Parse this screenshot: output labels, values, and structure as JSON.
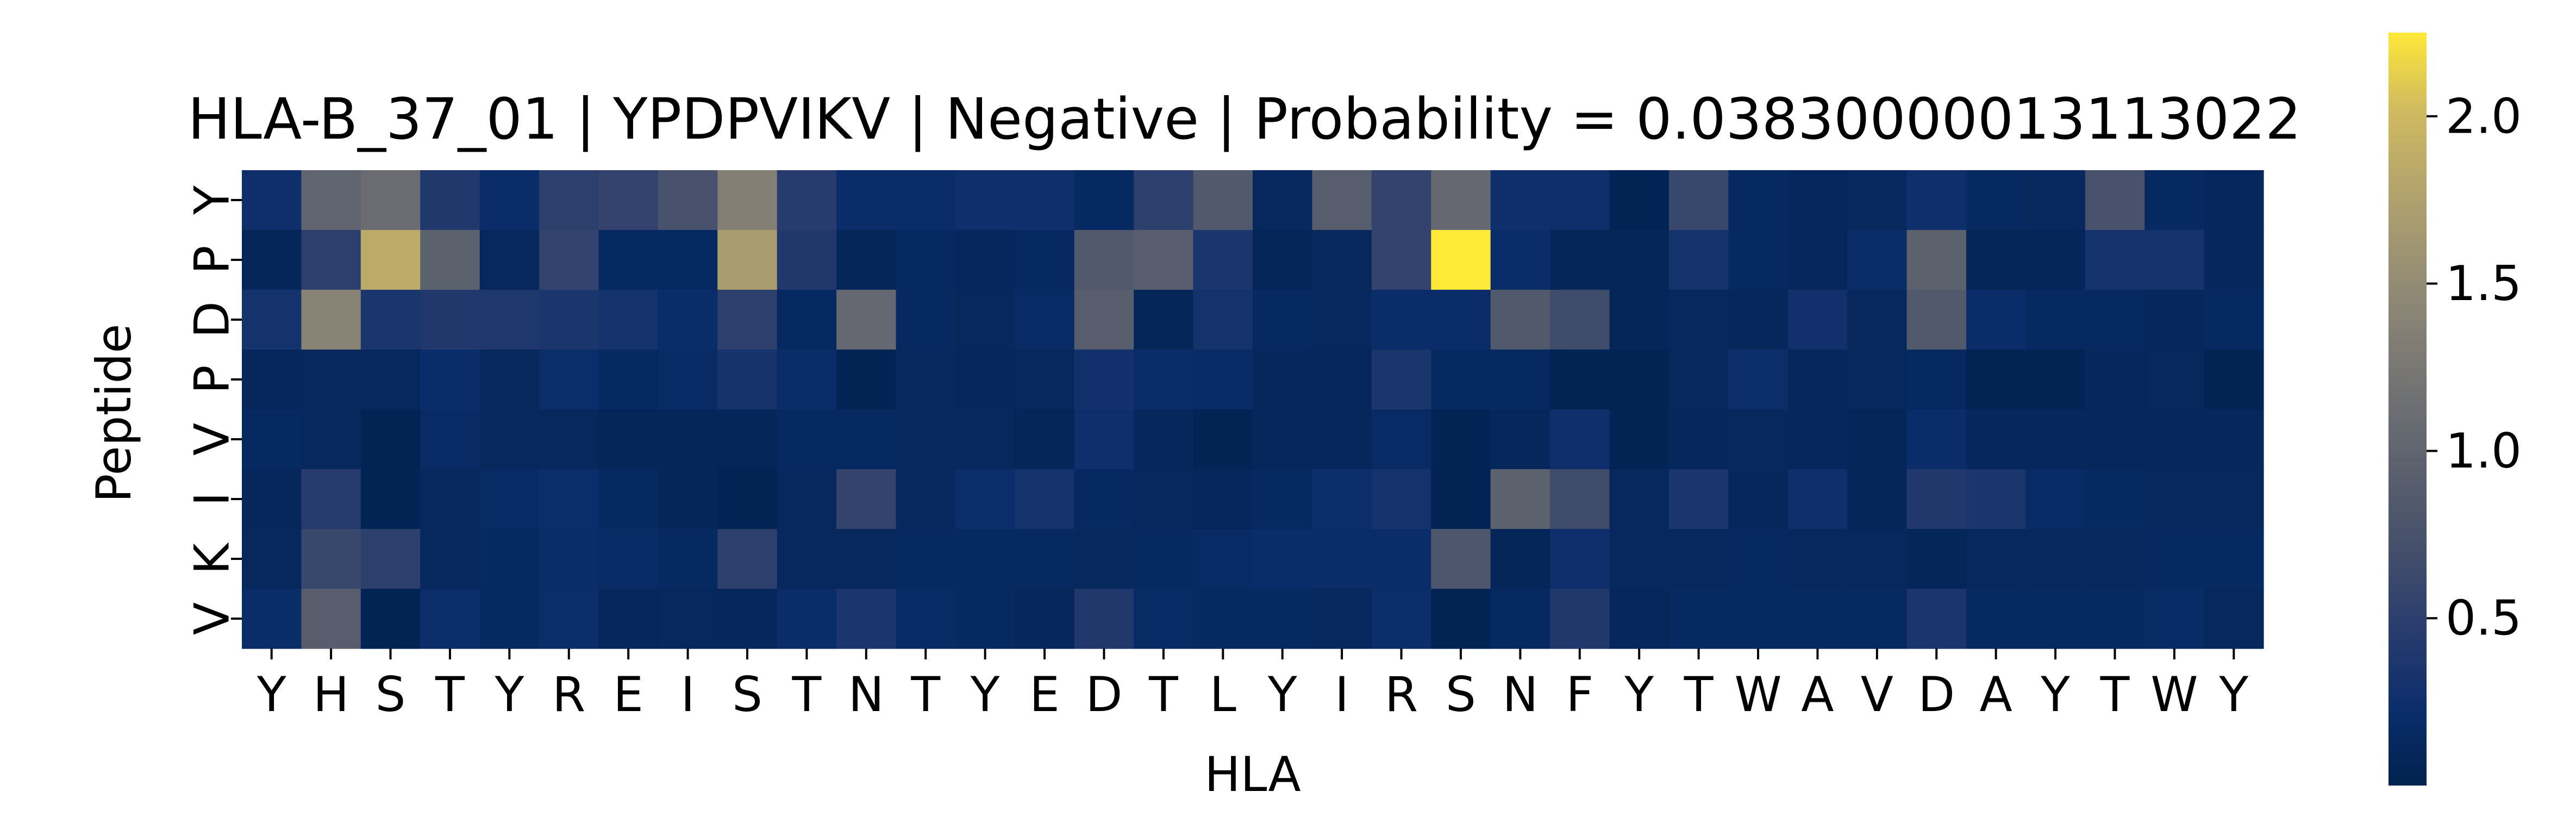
{
  "chart_data": {
    "type": "heatmap",
    "title": "HLA-B_37_01 | YPDPVIKV | Negative | Probability = 0.03830000013113022",
    "xlabel": "HLA",
    "ylabel": "Peptide",
    "x_categories": [
      "Y",
      "H",
      "S",
      "T",
      "Y",
      "R",
      "E",
      "I",
      "S",
      "T",
      "N",
      "T",
      "Y",
      "E",
      "D",
      "T",
      "L",
      "Y",
      "I",
      "R",
      "S",
      "N",
      "F",
      "Y",
      "T",
      "W",
      "A",
      "V",
      "D",
      "A",
      "Y",
      "T",
      "W",
      "Y"
    ],
    "y_categories": [
      "Y",
      "P",
      "D",
      "P",
      "V",
      "I",
      "K",
      "V"
    ],
    "colormap": "cividis",
    "colorbar": {
      "min": 0.0,
      "max": 2.25,
      "ticks": [
        0.5,
        1.0,
        1.5,
        2.0
      ],
      "tick_labels": [
        "0.5",
        "1.0",
        "1.5",
        "2.0"
      ]
    },
    "values": [
      [
        0.25,
        1.0,
        1.1,
        0.4,
        0.2,
        0.5,
        0.55,
        0.75,
        1.35,
        0.45,
        0.2,
        0.2,
        0.25,
        0.25,
        0.15,
        0.5,
        0.85,
        0.12,
        0.9,
        0.55,
        1.05,
        0.25,
        0.25,
        0.05,
        0.6,
        0.15,
        0.1,
        0.12,
        0.25,
        0.15,
        0.12,
        0.75,
        0.15,
        0.1
      ],
      [
        0.08,
        0.5,
        1.85,
        0.95,
        0.12,
        0.55,
        0.15,
        0.15,
        1.7,
        0.4,
        0.08,
        0.15,
        0.1,
        0.15,
        0.85,
        0.9,
        0.35,
        0.08,
        0.12,
        0.55,
        2.25,
        0.2,
        0.08,
        0.08,
        0.3,
        0.15,
        0.1,
        0.2,
        0.95,
        0.08,
        0.08,
        0.3,
        0.3,
        0.1
      ],
      [
        0.3,
        1.4,
        0.35,
        0.4,
        0.38,
        0.35,
        0.3,
        0.2,
        0.5,
        0.15,
        1.05,
        0.15,
        0.12,
        0.18,
        0.9,
        0.08,
        0.3,
        0.15,
        0.12,
        0.2,
        0.2,
        0.85,
        0.65,
        0.08,
        0.12,
        0.1,
        0.28,
        0.12,
        0.85,
        0.2,
        0.15,
        0.15,
        0.1,
        0.15
      ],
      [
        0.1,
        0.12,
        0.12,
        0.2,
        0.12,
        0.22,
        0.15,
        0.18,
        0.32,
        0.2,
        0.05,
        0.12,
        0.1,
        0.12,
        0.28,
        0.2,
        0.18,
        0.1,
        0.1,
        0.35,
        0.15,
        0.15,
        0.05,
        0.05,
        0.12,
        0.22,
        0.1,
        0.12,
        0.15,
        0.05,
        0.05,
        0.1,
        0.12,
        0.05
      ],
      [
        0.15,
        0.12,
        0.05,
        0.18,
        0.12,
        0.12,
        0.08,
        0.08,
        0.08,
        0.15,
        0.15,
        0.12,
        0.12,
        0.08,
        0.25,
        0.1,
        0.05,
        0.1,
        0.1,
        0.18,
        0.05,
        0.1,
        0.25,
        0.05,
        0.1,
        0.12,
        0.1,
        0.08,
        0.2,
        0.1,
        0.1,
        0.1,
        0.1,
        0.1
      ],
      [
        0.1,
        0.45,
        0.05,
        0.12,
        0.18,
        0.22,
        0.15,
        0.08,
        0.05,
        0.12,
        0.55,
        0.12,
        0.22,
        0.3,
        0.15,
        0.12,
        0.1,
        0.15,
        0.22,
        0.3,
        0.05,
        0.95,
        0.65,
        0.12,
        0.35,
        0.1,
        0.25,
        0.08,
        0.4,
        0.35,
        0.18,
        0.15,
        0.12,
        0.12
      ],
      [
        0.12,
        0.6,
        0.5,
        0.12,
        0.15,
        0.2,
        0.18,
        0.15,
        0.5,
        0.12,
        0.12,
        0.15,
        0.15,
        0.15,
        0.12,
        0.15,
        0.18,
        0.2,
        0.2,
        0.2,
        0.8,
        0.08,
        0.25,
        0.12,
        0.12,
        0.15,
        0.12,
        0.12,
        0.08,
        0.12,
        0.12,
        0.12,
        0.15,
        0.15
      ],
      [
        0.2,
        0.9,
        0.05,
        0.22,
        0.15,
        0.22,
        0.1,
        0.12,
        0.1,
        0.2,
        0.35,
        0.18,
        0.15,
        0.1,
        0.4,
        0.18,
        0.15,
        0.15,
        0.12,
        0.22,
        0.05,
        0.15,
        0.4,
        0.1,
        0.15,
        0.15,
        0.15,
        0.15,
        0.35,
        0.15,
        0.15,
        0.15,
        0.18,
        0.12
      ]
    ]
  }
}
